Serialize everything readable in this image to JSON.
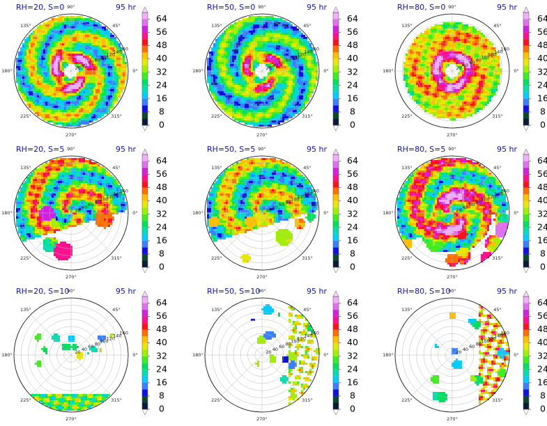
{
  "chart_data": {
    "type": "polar-contour",
    "valid_time": "95 hr",
    "angle_tick_labels": [
      "0°",
      "45°",
      "90°",
      "135°",
      "180°",
      "225°",
      "270°",
      "315°"
    ],
    "radial_tick_labels": [
      "20",
      "40",
      "60",
      "80",
      "100",
      "120",
      "140",
      "160"
    ],
    "colorbar": {
      "tick_labels": [
        "0",
        "8",
        "16",
        "24",
        "32",
        "40",
        "48",
        "56",
        "64"
      ],
      "levels": [
        0,
        4,
        8,
        12,
        16,
        20,
        24,
        28,
        32,
        36,
        40,
        44,
        48,
        52,
        56,
        60,
        64,
        68
      ],
      "colors": [
        "#0a1a3a",
        "#0a4a2a",
        "#1010e0",
        "#3a80ff",
        "#00ccff",
        "#00e0b0",
        "#00e060",
        "#40ee20",
        "#a0f000",
        "#e8e800",
        "#ffc000",
        "#ff7000",
        "#ff1020",
        "#ff1090",
        "#d020e0",
        "#e070f0",
        "#f0b0f8"
      ],
      "extend": "both"
    },
    "panels": [
      {
        "title": "RH=20, S=0",
        "time": "95 hr",
        "pattern": "spiral-full",
        "intensity": 1.0
      },
      {
        "title": "RH=50, S=0",
        "time": "95 hr",
        "pattern": "spiral-full",
        "intensity": 0.85
      },
      {
        "title": "RH=80, S=0",
        "time": "95 hr",
        "pattern": "ring",
        "intensity": 1.1
      },
      {
        "title": "RH=20, S=5",
        "time": "95 hr",
        "pattern": "sheared",
        "intensity": 1.0
      },
      {
        "title": "RH=50, S=5",
        "time": "95 hr",
        "pattern": "sheared",
        "intensity": 0.9
      },
      {
        "title": "RH=80, S=5",
        "time": "95 hr",
        "pattern": "sheared-ring",
        "intensity": 1.1
      },
      {
        "title": "RH=20, S=10",
        "time": "95 hr",
        "pattern": "south-band",
        "intensity": 0.9
      },
      {
        "title": "RH=50, S=10",
        "time": "95 hr",
        "pattern": "east-cells",
        "intensity": 0.8
      },
      {
        "title": "RH=80, S=10",
        "time": "95 hr",
        "pattern": "east-cluster",
        "intensity": 1.0
      }
    ]
  }
}
